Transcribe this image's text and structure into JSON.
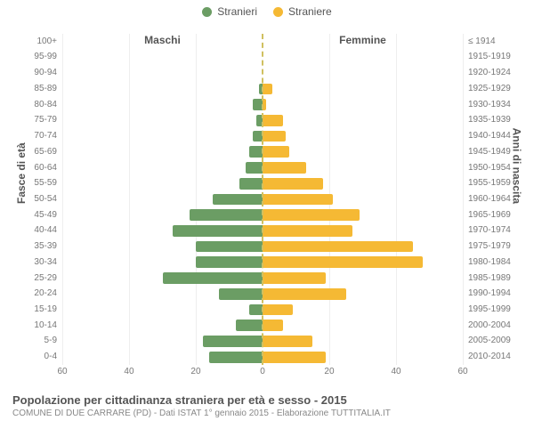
{
  "legend": {
    "male": {
      "label": "Stranieri",
      "color": "#6b9d64"
    },
    "female": {
      "label": "Straniere",
      "color": "#f5b934"
    }
  },
  "side_headers": {
    "left": "Maschi",
    "right": "Femmine"
  },
  "yaxis_titles": {
    "left": "Fasce di età",
    "right": "Anni di nascita"
  },
  "chart": {
    "type": "population-pyramid",
    "xmax": 60,
    "xticks": [
      60,
      40,
      20,
      0,
      20,
      40,
      60
    ],
    "grid_color": "#eeeeee",
    "center_line_color": "#d0c060",
    "background_color": "#ffffff",
    "tick_font_size": 10,
    "tick_color": "#777777",
    "rows": [
      {
        "age": "0-4",
        "birth": "2010-2014",
        "m": 16,
        "f": 19
      },
      {
        "age": "5-9",
        "birth": "2005-2009",
        "m": 18,
        "f": 15
      },
      {
        "age": "10-14",
        "birth": "2000-2004",
        "m": 8,
        "f": 6
      },
      {
        "age": "15-19",
        "birth": "1995-1999",
        "m": 4,
        "f": 9
      },
      {
        "age": "20-24",
        "birth": "1990-1994",
        "m": 13,
        "f": 25
      },
      {
        "age": "25-29",
        "birth": "1985-1989",
        "m": 30,
        "f": 19
      },
      {
        "age": "30-34",
        "birth": "1980-1984",
        "m": 20,
        "f": 48
      },
      {
        "age": "35-39",
        "birth": "1975-1979",
        "m": 20,
        "f": 45
      },
      {
        "age": "40-44",
        "birth": "1970-1974",
        "m": 27,
        "f": 27
      },
      {
        "age": "45-49",
        "birth": "1965-1969",
        "m": 22,
        "f": 29
      },
      {
        "age": "50-54",
        "birth": "1960-1964",
        "m": 15,
        "f": 21
      },
      {
        "age": "55-59",
        "birth": "1955-1959",
        "m": 7,
        "f": 18
      },
      {
        "age": "60-64",
        "birth": "1950-1954",
        "m": 5,
        "f": 13
      },
      {
        "age": "65-69",
        "birth": "1945-1949",
        "m": 4,
        "f": 8
      },
      {
        "age": "70-74",
        "birth": "1940-1944",
        "m": 3,
        "f": 7
      },
      {
        "age": "75-79",
        "birth": "1935-1939",
        "m": 2,
        "f": 6
      },
      {
        "age": "80-84",
        "birth": "1930-1934",
        "m": 3,
        "f": 1
      },
      {
        "age": "85-89",
        "birth": "1925-1929",
        "m": 1,
        "f": 3
      },
      {
        "age": "90-94",
        "birth": "1920-1924",
        "m": 0,
        "f": 0
      },
      {
        "age": "95-99",
        "birth": "1915-1919",
        "m": 0,
        "f": 0
      },
      {
        "age": "100+",
        "birth": "≤ 1914",
        "m": 0,
        "f": 0
      }
    ]
  },
  "footer": {
    "title": "Popolazione per cittadinanza straniera per età e sesso - 2015",
    "subtitle": "COMUNE DI DUE CARRARE (PD) - Dati ISTAT 1° gennaio 2015 - Elaborazione TUTTITALIA.IT"
  }
}
